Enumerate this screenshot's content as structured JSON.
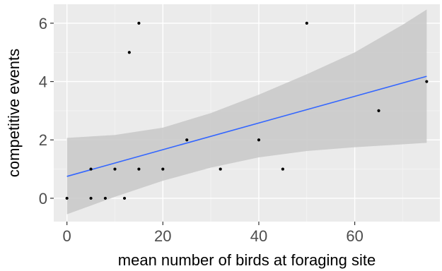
{
  "chart_data": {
    "type": "scatter",
    "xlabel": "mean number of birds at foraging site",
    "ylabel": "competitive events",
    "xlim": [
      -2.75,
      77.75
    ],
    "ylim": [
      -0.8,
      6.65
    ],
    "x_ticks": [
      0,
      20,
      40,
      60
    ],
    "x_tick_labels": [
      "0",
      "20",
      "40",
      "60"
    ],
    "y_ticks": [
      0,
      2,
      4,
      6
    ],
    "y_tick_labels": [
      "0",
      "2",
      "4",
      "6"
    ],
    "grid": true,
    "points": [
      {
        "x": 0,
        "y": 0
      },
      {
        "x": 5,
        "y": 0
      },
      {
        "x": 8,
        "y": 0
      },
      {
        "x": 12,
        "y": 0
      },
      {
        "x": 5,
        "y": 1
      },
      {
        "x": 10,
        "y": 1
      },
      {
        "x": 15,
        "y": 1
      },
      {
        "x": 20,
        "y": 1
      },
      {
        "x": 32,
        "y": 1
      },
      {
        "x": 45,
        "y": 1
      },
      {
        "x": 25,
        "y": 2
      },
      {
        "x": 40,
        "y": 2
      },
      {
        "x": 65,
        "y": 3
      },
      {
        "x": 75,
        "y": 4
      },
      {
        "x": 13,
        "y": 5
      },
      {
        "x": 15,
        "y": 6
      },
      {
        "x": 50,
        "y": 6
      }
    ],
    "fit_line": {
      "x": [
        0,
        75
      ],
      "y": [
        0.75,
        4.18
      ]
    },
    "confidence_band": {
      "x": [
        0,
        10,
        20,
        30,
        40,
        50,
        60,
        70,
        75
      ],
      "lower": [
        -0.55,
        0.05,
        0.6,
        1.05,
        1.4,
        1.62,
        1.75,
        1.85,
        1.9
      ],
      "upper": [
        2.07,
        2.17,
        2.42,
        2.92,
        3.55,
        4.25,
        5.0,
        5.95,
        6.47
      ]
    },
    "colors": {
      "panel": "#ebebeb",
      "grid_major": "#ffffff",
      "grid_minor": "#f5f5f5",
      "band": "#c8c8c8",
      "line": "#3366ff",
      "point": "#000000",
      "tick_text": "#4d4d4d",
      "tick_mark": "#333333"
    }
  }
}
